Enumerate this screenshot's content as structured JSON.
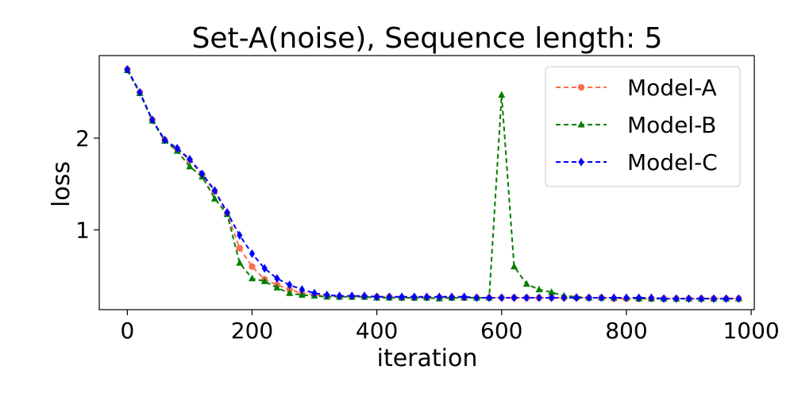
{
  "chart_data": {
    "type": "line",
    "title": "Set-A(noise), Sequence length: 5",
    "xlabel": "iteration",
    "ylabel": "loss",
    "xlim": [
      -45,
      1005
    ],
    "ylim": [
      0.13,
      2.9
    ],
    "xticks": [
      0,
      200,
      400,
      600,
      800,
      1000
    ],
    "yticks": [
      1,
      2
    ],
    "grid": false,
    "legend": "top-right",
    "x": [
      0,
      20,
      40,
      60,
      80,
      100,
      120,
      140,
      160,
      180,
      200,
      220,
      240,
      260,
      280,
      300,
      320,
      340,
      360,
      380,
      400,
      420,
      440,
      460,
      480,
      500,
      520,
      540,
      560,
      580,
      600,
      620,
      640,
      660,
      680,
      700,
      720,
      740,
      760,
      780,
      800,
      820,
      840,
      860,
      880,
      900,
      920,
      940,
      960,
      980
    ],
    "series": [
      {
        "name": "Model-A",
        "color": "#fa6e4f",
        "marker": "circle",
        "values": [
          2.75,
          2.5,
          2.2,
          1.98,
          1.88,
          1.76,
          1.6,
          1.42,
          1.18,
          0.8,
          0.6,
          0.46,
          0.4,
          0.35,
          0.31,
          0.29,
          0.28,
          0.27,
          0.27,
          0.27,
          0.27,
          0.27,
          0.26,
          0.26,
          0.26,
          0.26,
          0.26,
          0.26,
          0.26,
          0.26,
          0.26,
          0.26,
          0.26,
          0.26,
          0.26,
          0.26,
          0.26,
          0.26,
          0.26,
          0.25,
          0.25,
          0.25,
          0.25,
          0.25,
          0.25,
          0.25,
          0.25,
          0.25,
          0.25,
          0.25
        ]
      },
      {
        "name": "Model-B",
        "color": "#007f00",
        "marker": "triangle",
        "values": [
          2.74,
          2.49,
          2.19,
          1.97,
          1.86,
          1.69,
          1.58,
          1.34,
          1.17,
          0.64,
          0.47,
          0.44,
          0.37,
          0.31,
          0.29,
          0.28,
          0.27,
          0.27,
          0.27,
          0.27,
          0.26,
          0.26,
          0.26,
          0.26,
          0.26,
          0.25,
          0.26,
          0.26,
          0.26,
          0.26,
          2.47,
          0.6,
          0.41,
          0.35,
          0.32,
          0.28,
          0.27,
          0.26,
          0.26,
          0.26,
          0.26,
          0.25,
          0.25,
          0.25,
          0.25,
          0.25,
          0.25,
          0.25,
          0.25,
          0.25
        ]
      },
      {
        "name": "Model-C",
        "color": "#0000ff",
        "marker": "diamond",
        "values": [
          2.75,
          2.5,
          2.2,
          1.98,
          1.89,
          1.77,
          1.61,
          1.43,
          1.19,
          0.94,
          0.74,
          0.58,
          0.47,
          0.4,
          0.35,
          0.31,
          0.29,
          0.28,
          0.28,
          0.28,
          0.27,
          0.27,
          0.27,
          0.27,
          0.27,
          0.27,
          0.27,
          0.27,
          0.26,
          0.26,
          0.26,
          0.26,
          0.26,
          0.26,
          0.26,
          0.26,
          0.26,
          0.26,
          0.26,
          0.26,
          0.26,
          0.26,
          0.26,
          0.25,
          0.25,
          0.25,
          0.25,
          0.25,
          0.25,
          0.25
        ]
      }
    ]
  }
}
